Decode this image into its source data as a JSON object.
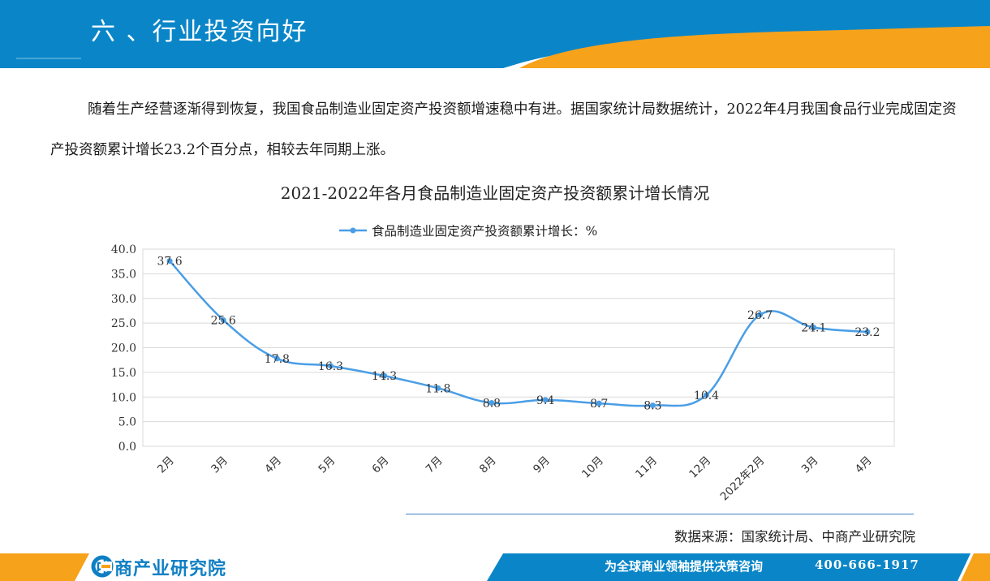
{
  "header": {
    "title": "六 、行业投资向好",
    "colors": {
      "bar": "#0a86c8",
      "accent": "#f7a21b"
    }
  },
  "intro": {
    "paragraph": "随着生产经营逐渐得到恢复，我国食品制造业固定资产投资额增速稳中有进。据国家统计局数据统计，2022年4月我国食品行业完成固定资产投资额累计增长23.2个百分点，相较去年同期上涨。"
  },
  "chart_data": {
    "type": "line",
    "title": "2021-2022年各月食品制造业固定资产投资额累计增长情况",
    "categories": [
      "2月",
      "3月",
      "4月",
      "5月",
      "6月",
      "7月",
      "8月",
      "9月",
      "10月",
      "11月",
      "12月",
      "2022年2月",
      "3月",
      "4月"
    ],
    "series": [
      {
        "name": "食品制造业固定资产投资额累计增长：%",
        "values": [
          37.6,
          25.6,
          17.8,
          16.3,
          14.3,
          11.8,
          8.8,
          9.4,
          8.7,
          8.3,
          10.4,
          26.7,
          24.1,
          23.2
        ],
        "labels": [
          "37.6",
          "25.6",
          "17.8",
          "16.3",
          "14.3",
          "11.8",
          "8.8",
          "9.4",
          "8.7",
          "8.3",
          "10.4",
          "26.7",
          "24.1",
          "23.2"
        ],
        "color": "#4a9ee6"
      }
    ],
    "ylim": [
      0,
      40
    ],
    "yticks": [
      "0.0",
      "5.0",
      "10.0",
      "15.0",
      "20.0",
      "25.0",
      "30.0",
      "35.0",
      "40.0"
    ],
    "grid": true,
    "legend": "top-center",
    "smooth": true
  },
  "source": {
    "text": "数据来源：国家统计局、中商产业研究院"
  },
  "footer": {
    "logo_text": "中商产业研究院",
    "slogan": "为全球商业领袖提供决策咨询",
    "phone": "400-666-1917",
    "colors": {
      "band": "#0a86c8",
      "accent": "#f7a21b",
      "logo": "#0f7fc4"
    }
  }
}
